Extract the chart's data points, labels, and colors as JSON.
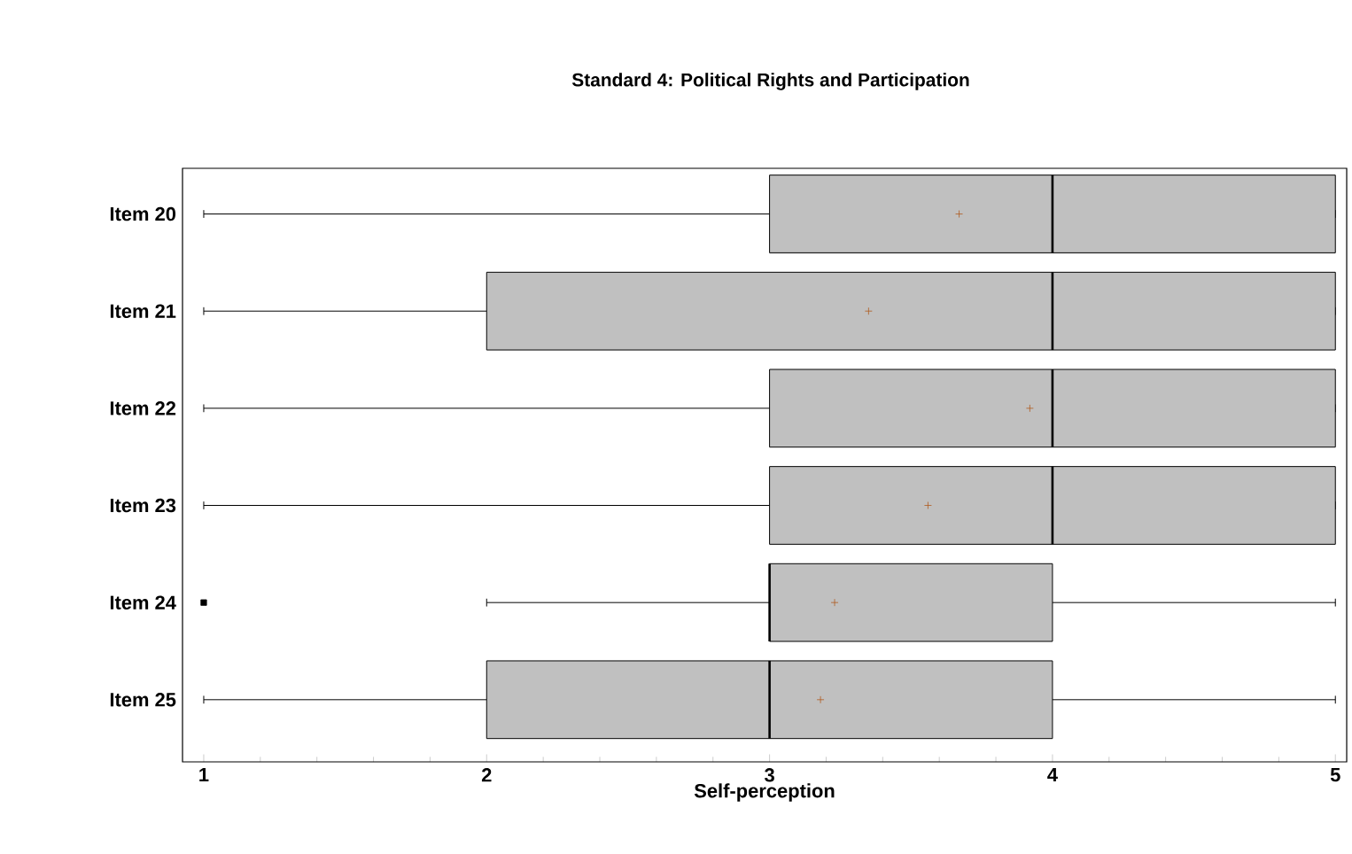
{
  "chart_data": {
    "type": "box",
    "orientation": "horizontal",
    "title": "Standard 4: Political Rights and Participation",
    "xlabel": "Self-perception",
    "categories": [
      "Item 20",
      "Item 21",
      "Item 22",
      "Item 23",
      "Item 24",
      "Item 25"
    ],
    "color": "#c0c0c0",
    "boxes": [
      {
        "low": 1,
        "q1": 3,
        "median": 4,
        "q3": 5,
        "high": 5,
        "mean": 3.67
      },
      {
        "low": 1,
        "q1": 2,
        "median": 4,
        "q3": 5,
        "high": 5,
        "mean": 3.35
      },
      {
        "low": 1,
        "q1": 3,
        "median": 4,
        "q3": 5,
        "high": 5,
        "mean": 3.92
      },
      {
        "low": 1,
        "q1": 3,
        "median": 4,
        "q3": 5,
        "high": 5,
        "mean": 3.56
      },
      {
        "low": 2,
        "q1": 3,
        "median": 3,
        "q3": 4,
        "high": 5,
        "mean": 3.23,
        "outliers": [
          1
        ]
      },
      {
        "low": 1,
        "q1": 2,
        "median": 3,
        "q3": 4,
        "high": 5,
        "mean": 3.18
      }
    ],
    "xlim": [
      0.925,
      5.04
    ],
    "xticks": [
      1,
      2,
      3,
      4,
      5
    ]
  }
}
